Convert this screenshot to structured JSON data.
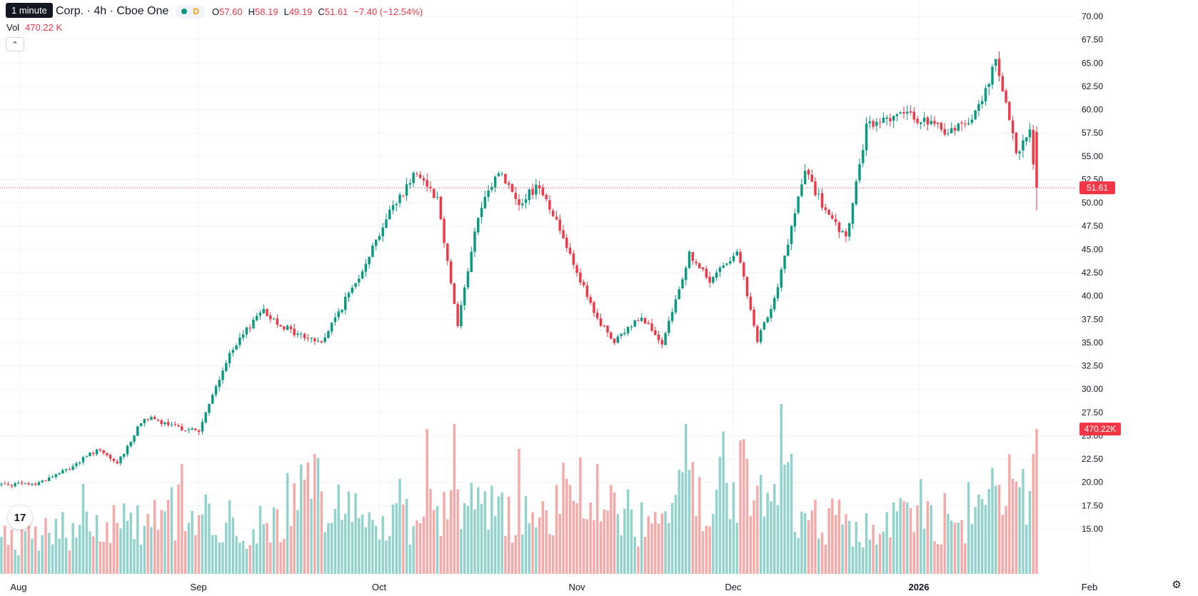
{
  "header": {
    "interval_tooltip": "1 minute",
    "title": "Corp. · 4h · Cboe One",
    "status_letter": "D",
    "ohlc": {
      "o_label": "O",
      "o_value": "57.60",
      "h_label": "H",
      "h_value": "58.19",
      "l_label": "L",
      "l_value": "49.19",
      "c_label": "C",
      "c_value": "51.61",
      "change": "−7.40 (−12.54%)"
    },
    "volume_label": "Vol",
    "volume_value": "470.22 K"
  },
  "colors": {
    "up": "#089981",
    "down": "#f23645",
    "up_volume": "#92d2cc",
    "down_volume": "#f7a9a7",
    "grid": "#f0f3fa",
    "axis_text": "#131722"
  },
  "icons": {
    "collapse": "chevron-up-icon",
    "logo": "tradingview-logo-icon",
    "settings": "gear-icon"
  },
  "chart_data": {
    "type": "candlestick",
    "price_axis": {
      "ticks": [
        "70.00",
        "67.50",
        "65.00",
        "62.50",
        "60.00",
        "57.50",
        "55.00",
        "52.50",
        "50.00",
        "47.50",
        "45.00",
        "42.50",
        "40.00",
        "37.50",
        "35.00",
        "32.50",
        "30.00",
        "27.50",
        "25.00",
        "22.50",
        "20.00",
        "17.50",
        "15.00"
      ],
      "ylim": [
        14.0,
        71.0
      ]
    },
    "time_axis": {
      "labels": [
        "Aug",
        "Sep",
        "Oct",
        "Nov",
        "Dec",
        "2026",
        "Feb"
      ],
      "bold": [
        false,
        false,
        false,
        false,
        false,
        true,
        false
      ]
    },
    "last_price_label": "51.61",
    "last_volume_label": "470.22K",
    "price_anchors": [
      [
        0,
        19.8
      ],
      [
        10,
        19.8
      ],
      [
        20,
        21.5
      ],
      [
        28,
        23.5
      ],
      [
        34,
        22.0
      ],
      [
        42,
        27.0
      ],
      [
        50,
        26.0
      ],
      [
        58,
        25.5
      ],
      [
        66,
        33.0
      ],
      [
        76,
        38.5
      ],
      [
        86,
        36.0
      ],
      [
        94,
        35.0
      ],
      [
        104,
        41.5
      ],
      [
        114,
        49.0
      ],
      [
        122,
        53.5
      ],
      [
        128,
        50.5
      ],
      [
        134,
        37.0
      ],
      [
        140,
        48.5
      ],
      [
        146,
        53.5
      ],
      [
        152,
        50.0
      ],
      [
        158,
        52.0
      ],
      [
        166,
        45.5
      ],
      [
        174,
        38.0
      ],
      [
        180,
        35.0
      ],
      [
        188,
        38.0
      ],
      [
        194,
        34.5
      ],
      [
        202,
        44.5
      ],
      [
        208,
        41.5
      ],
      [
        216,
        45.0
      ],
      [
        222,
        35.0
      ],
      [
        228,
        41.0
      ],
      [
        236,
        53.5
      ],
      [
        242,
        49.0
      ],
      [
        248,
        46.0
      ],
      [
        254,
        58.0
      ],
      [
        262,
        59.5
      ],
      [
        270,
        59.0
      ],
      [
        278,
        57.5
      ],
      [
        286,
        59.5
      ],
      [
        292,
        65.0
      ],
      [
        298,
        55.5
      ],
      [
        302,
        57.5
      ],
      [
        304,
        51.6
      ]
    ],
    "volume_anchors": [
      [
        0,
        3.5
      ],
      [
        24,
        5.5
      ],
      [
        50,
        7.0
      ],
      [
        74,
        5.0
      ],
      [
        92,
        9.5
      ],
      [
        112,
        5.5
      ],
      [
        132,
        8.0
      ],
      [
        152,
        6.0
      ],
      [
        168,
        9.0
      ],
      [
        190,
        5.5
      ],
      [
        208,
        10.0
      ],
      [
        222,
        12.0
      ],
      [
        238,
        6.0
      ],
      [
        260,
        5.5
      ],
      [
        282,
        6.5
      ],
      [
        304,
        11.0
      ]
    ],
    "volume_spikes": [
      [
        24,
        9.0
      ],
      [
        53,
        11.0
      ],
      [
        117,
        9.5
      ],
      [
        125,
        14.5
      ],
      [
        133,
        15.0
      ],
      [
        152,
        12.5
      ],
      [
        175,
        11.0
      ],
      [
        201,
        15.0
      ],
      [
        229,
        17.0
      ],
      [
        232,
        12.0
      ],
      [
        270,
        9.5
      ],
      [
        300,
        10.5
      ]
    ]
  }
}
